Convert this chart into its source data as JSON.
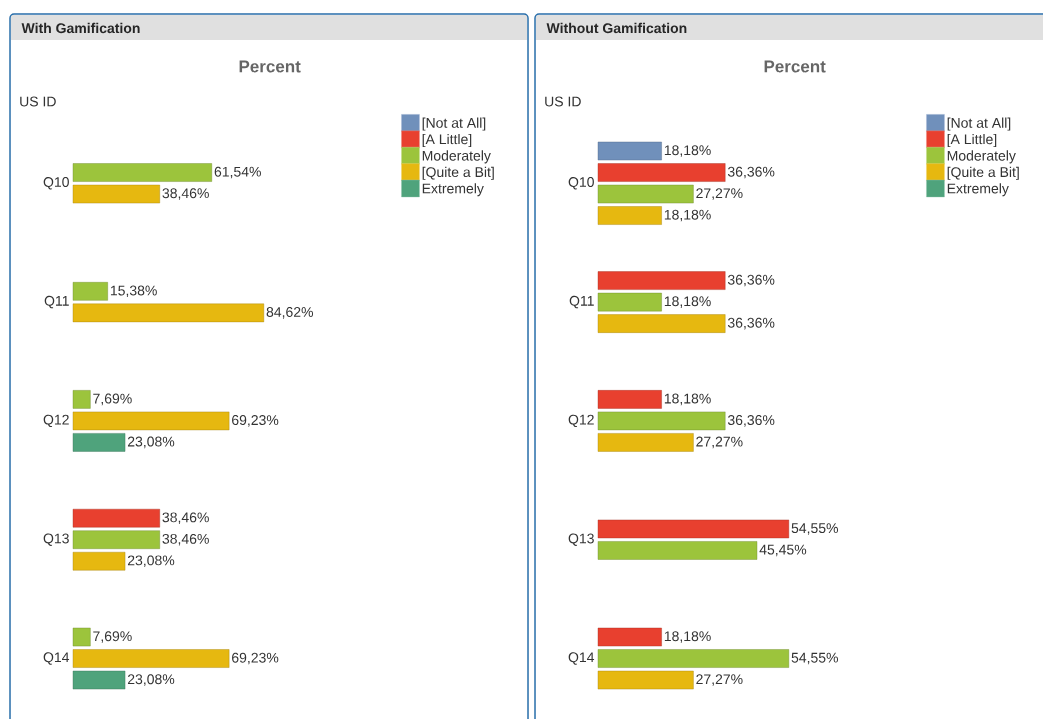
{
  "chart_data": [
    {
      "type": "bar",
      "orientation": "horizontal",
      "title": "With Gamification",
      "subtitle": "Percent",
      "ylabel": "US ID",
      "categories": [
        "Q10",
        "Q11",
        "Q12",
        "Q13",
        "Q14"
      ],
      "legend": "top right",
      "series": [
        {
          "name": "[Not at All]",
          "color": "#7090bb",
          "values": [
            null,
            null,
            null,
            null,
            null
          ],
          "value_labels": [
            null,
            null,
            null,
            null,
            null
          ]
        },
        {
          "name": "[A Little]",
          "color": "#e8402f",
          "values": [
            null,
            null,
            null,
            38.46,
            null
          ],
          "value_labels": [
            null,
            null,
            null,
            "38,46%",
            null
          ]
        },
        {
          "name": "Moderately",
          "color": "#9cc43c",
          "values": [
            61.54,
            15.38,
            7.69,
            38.46,
            7.69
          ],
          "value_labels": [
            "61,54%",
            "15,38%",
            "7,69%",
            "38,46%",
            "7,69%"
          ]
        },
        {
          "name": "[Quite a Bit]",
          "color": "#e6b810",
          "values": [
            38.46,
            84.62,
            69.23,
            23.08,
            69.23
          ],
          "value_labels": [
            "38,46%",
            "84,62%",
            "69,23%",
            "23,08%",
            "69,23%"
          ]
        },
        {
          "name": "Extremely",
          "color": "#4fa37c",
          "values": [
            null,
            null,
            23.08,
            null,
            23.08
          ],
          "value_labels": [
            null,
            null,
            "23,08%",
            null,
            "23,08%"
          ]
        }
      ]
    },
    {
      "type": "bar",
      "orientation": "horizontal",
      "title": "Without Gamification",
      "subtitle": "Percent",
      "ylabel": "US ID",
      "categories": [
        "Q10",
        "Q11",
        "Q12",
        "Q13",
        "Q14"
      ],
      "legend": "top right",
      "series": [
        {
          "name": "[Not at All]",
          "color": "#7090bb",
          "values": [
            18.18,
            null,
            null,
            null,
            null
          ],
          "value_labels": [
            "18,18%",
            null,
            null,
            null,
            null
          ]
        },
        {
          "name": "[A Little]",
          "color": "#e8402f",
          "values": [
            36.36,
            36.36,
            18.18,
            54.55,
            18.18
          ],
          "value_labels": [
            "36,36%",
            "36,36%",
            "18,18%",
            "54,55%",
            "18,18%"
          ]
        },
        {
          "name": "Moderately",
          "color": "#9cc43c",
          "values": [
            27.27,
            18.18,
            36.36,
            45.45,
            54.55
          ],
          "value_labels": [
            "27,27%",
            "18,18%",
            "36,36%",
            "45,45%",
            "54,55%"
          ]
        },
        {
          "name": "[Quite a Bit]",
          "color": "#e6b810",
          "values": [
            18.18,
            36.36,
            27.27,
            null,
            27.27
          ],
          "value_labels": [
            "18,18%",
            "36,36%",
            "27,27%",
            null,
            "27,27%"
          ]
        },
        {
          "name": "Extremely",
          "color": "#4fa37c",
          "values": [
            null,
            null,
            null,
            null,
            null
          ],
          "value_labels": [
            null,
            null,
            null,
            null,
            null
          ]
        }
      ]
    }
  ]
}
